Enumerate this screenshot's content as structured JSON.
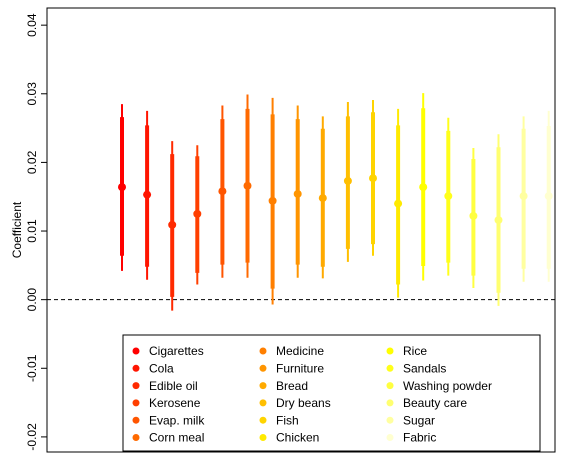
{
  "chart_data": {
    "type": "coefplot",
    "y_label": "Coefficient",
    "ylim": [
      -0.0222,
      0.0425
    ],
    "yticks": [
      -0.02,
      -0.01,
      {
        "value": 0,
        "label": "0.00"
      },
      0.01,
      0.02,
      0.03,
      0.04
    ],
    "reference_line": true,
    "legend_position": "bottom",
    "series": [
      {
        "name": "Cigarettes",
        "color": "#ff0000",
        "estimate": 0.0164,
        "ci_inner": [
          0.0064,
          0.0266
        ],
        "ci_outer": [
          0.0042,
          0.0285
        ]
      },
      {
        "name": "Cola",
        "color": "#ff1500",
        "estimate": 0.0153,
        "ci_inner": [
          0.0048,
          0.0254
        ],
        "ci_outer": [
          0.0029,
          0.0275
        ]
      },
      {
        "name": "Edible oil",
        "color": "#ff2a00",
        "estimate": 0.0109,
        "ci_inner": [
          0.0004,
          0.0212
        ],
        "ci_outer": [
          -0.0016,
          0.0231
        ]
      },
      {
        "name": "Kerosene",
        "color": "#ff3f00",
        "estimate": 0.0125,
        "ci_inner": [
          0.0039,
          0.0209
        ],
        "ci_outer": [
          0.0022,
          0.0225
        ]
      },
      {
        "name": "Evap. milk",
        "color": "#ff5500",
        "estimate": 0.0158,
        "ci_inner": [
          0.0051,
          0.0263
        ],
        "ci_outer": [
          0.0032,
          0.0283
        ]
      },
      {
        "name": "Corn meal",
        "color": "#ff6a00",
        "estimate": 0.0166,
        "ci_inner": [
          0.0054,
          0.0278
        ],
        "ci_outer": [
          0.0032,
          0.0299
        ]
      },
      {
        "name": "Medicine",
        "color": "#ff7f00",
        "estimate": 0.0144,
        "ci_inner": [
          0.0016,
          0.027
        ],
        "ci_outer": [
          -0.0007,
          0.0294
        ]
      },
      {
        "name": "Furniture",
        "color": "#ff9500",
        "estimate": 0.0154,
        "ci_inner": [
          0.0051,
          0.0263
        ],
        "ci_outer": [
          0.0032,
          0.0283
        ]
      },
      {
        "name": "Bread",
        "color": "#ffaa00",
        "estimate": 0.0148,
        "ci_inner": [
          0.0048,
          0.0249
        ],
        "ci_outer": [
          0.0031,
          0.0267
        ]
      },
      {
        "name": "Dry beans",
        "color": "#ffbf00",
        "estimate": 0.0173,
        "ci_inner": [
          0.0074,
          0.0267
        ],
        "ci_outer": [
          0.0055,
          0.0288
        ]
      },
      {
        "name": "Fish",
        "color": "#ffd400",
        "estimate": 0.0177,
        "ci_inner": [
          0.0081,
          0.0273
        ],
        "ci_outer": [
          0.0064,
          0.0291
        ]
      },
      {
        "name": "Chicken",
        "color": "#ffea00",
        "estimate": 0.014,
        "ci_inner": [
          0.0022,
          0.0254
        ],
        "ci_outer": [
          0.0003,
          0.0278
        ]
      },
      {
        "name": "Rice",
        "color": "#ffff00",
        "estimate": 0.0164,
        "ci_inner": [
          0.0049,
          0.0279
        ],
        "ci_outer": [
          0.0028,
          0.0301
        ]
      },
      {
        "name": "Sandals",
        "color": "#ffff1a",
        "estimate": 0.0151,
        "ci_inner": [
          0.0054,
          0.0246
        ],
        "ci_outer": [
          0.0035,
          0.0265
        ]
      },
      {
        "name": "Washing powder",
        "color": "#ffff40",
        "estimate": 0.0122,
        "ci_inner": [
          0.0035,
          0.0205
        ],
        "ci_outer": [
          0.0017,
          0.0221
        ]
      },
      {
        "name": "Beauty care",
        "color": "#ffff70",
        "estimate": 0.0116,
        "ci_inner": [
          0.001,
          0.0222
        ],
        "ci_outer": [
          -0.0009,
          0.0241
        ]
      },
      {
        "name": "Sugar",
        "color": "#ffffa0",
        "estimate": 0.0151,
        "ci_inner": [
          0.0045,
          0.0249
        ],
        "ci_outer": [
          0.0026,
          0.0267
        ]
      },
      {
        "name": "Fabric",
        "color": "#ffffd0",
        "estimate": 0.0151,
        "ci_inner": [
          0.0045,
          0.0253
        ],
        "ci_outer": [
          0.0026,
          0.0275
        ]
      }
    ]
  }
}
